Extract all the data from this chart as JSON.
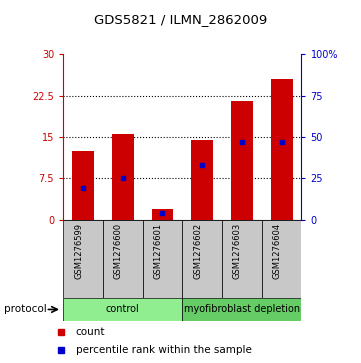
{
  "title": "GDS5821 / ILMN_2862009",
  "samples": [
    "GSM1276599",
    "GSM1276600",
    "GSM1276601",
    "GSM1276602",
    "GSM1276603",
    "GSM1276604"
  ],
  "count_values": [
    12.5,
    15.5,
    2.0,
    14.5,
    21.5,
    25.5
  ],
  "percentile_values": [
    19,
    25,
    4,
    33,
    47,
    47
  ],
  "protocol_groups": [
    {
      "label": "control",
      "start": 0,
      "end": 3,
      "color": "#90EE90"
    },
    {
      "label": "myofibroblast depletion",
      "start": 3,
      "end": 6,
      "color": "#66CC66"
    }
  ],
  "bar_color": "#CC0000",
  "dot_color": "#0000CC",
  "ylim_left": [
    0,
    30
  ],
  "ylim_right": [
    0,
    100
  ],
  "yticks_left": [
    0,
    7.5,
    15,
    22.5,
    30
  ],
  "yticks_right": [
    0,
    25,
    50,
    75,
    100
  ],
  "ytick_labels_left": [
    "0",
    "7.5",
    "15",
    "22.5",
    "30"
  ],
  "ytick_labels_right": [
    "0",
    "25",
    "50",
    "75",
    "100%"
  ],
  "ylabel_left_color": "#CC0000",
  "ylabel_right_color": "#0000CC",
  "grid_dotted_at": [
    7.5,
    15,
    22.5
  ],
  "legend_count_label": "count",
  "legend_percentile_label": "percentile rank within the sample",
  "protocol_label": "protocol",
  "bar_width": 0.55,
  "figsize": [
    3.61,
    3.63
  ],
  "dpi": 100
}
